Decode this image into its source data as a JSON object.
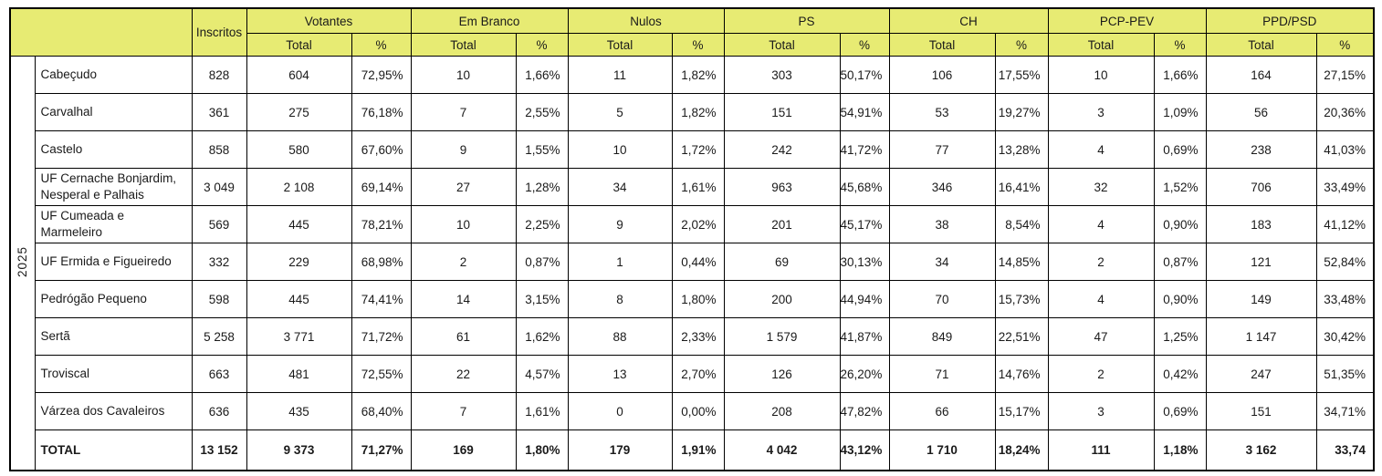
{
  "colors": {
    "header_bg": "#e7eb73",
    "border": "#000000",
    "text": "#1a1a1a"
  },
  "table": {
    "year_label": "2025",
    "corner_label": "",
    "inscritos_label": "Inscritos",
    "sub_total_label": "Total",
    "sub_pct_label": "%",
    "groups": [
      {
        "label": "Votantes"
      },
      {
        "label": "Em Branco"
      },
      {
        "label": "Nulos"
      },
      {
        "label": "PS"
      },
      {
        "label": "CH"
      },
      {
        "label": "PCP-PEV"
      },
      {
        "label": "PPD/PSD"
      }
    ],
    "rows": [
      {
        "name": "Cabeçudo",
        "values": [
          "828",
          "604",
          "72,95%",
          "10",
          "1,66%",
          "11",
          "1,82%",
          "303",
          "50,17%",
          "106",
          "17,55%",
          "10",
          "1,66%",
          "164",
          "27,15%"
        ]
      },
      {
        "name": "Carvalhal",
        "values": [
          "361",
          "275",
          "76,18%",
          "7",
          "2,55%",
          "5",
          "1,82%",
          "151",
          "54,91%",
          "53",
          "19,27%",
          "3",
          "1,09%",
          "56",
          "20,36%"
        ]
      },
      {
        "name": "Castelo",
        "values": [
          "858",
          "580",
          "67,60%",
          "9",
          "1,55%",
          "10",
          "1,72%",
          "242",
          "41,72%",
          "77",
          "13,28%",
          "4",
          "0,69%",
          "238",
          "41,03%"
        ]
      },
      {
        "name": "UF Cernache Bonjardim, Nesperal e Palhais",
        "values": [
          "3 049",
          "2 108",
          "69,14%",
          "27",
          "1,28%",
          "34",
          "1,61%",
          "963",
          "45,68%",
          "346",
          "16,41%",
          "32",
          "1,52%",
          "706",
          "33,49%"
        ]
      },
      {
        "name": "UF Cumeada e Marmeleiro",
        "values": [
          "569",
          "445",
          "78,21%",
          "10",
          "2,25%",
          "9",
          "2,02%",
          "201",
          "45,17%",
          "38",
          "8,54%",
          "4",
          "0,90%",
          "183",
          "41,12%"
        ]
      },
      {
        "name": "UF Ermida e Figueiredo",
        "values": [
          "332",
          "229",
          "68,98%",
          "2",
          "0,87%",
          "1",
          "0,44%",
          "69",
          "30,13%",
          "34",
          "14,85%",
          "2",
          "0,87%",
          "121",
          "52,84%"
        ]
      },
      {
        "name": "Pedrógão Pequeno",
        "values": [
          "598",
          "445",
          "74,41%",
          "14",
          "3,15%",
          "8",
          "1,80%",
          "200",
          "44,94%",
          "70",
          "15,73%",
          "4",
          "0,90%",
          "149",
          "33,48%"
        ]
      },
      {
        "name": "Sertã",
        "values": [
          "5 258",
          "3 771",
          "71,72%",
          "61",
          "1,62%",
          "88",
          "2,33%",
          "1 579",
          "41,87%",
          "849",
          "22,51%",
          "47",
          "1,25%",
          "1 147",
          "30,42%"
        ]
      },
      {
        "name": "Troviscal",
        "values": [
          "663",
          "481",
          "72,55%",
          "22",
          "4,57%",
          "13",
          "2,70%",
          "126",
          "26,20%",
          "71",
          "14,76%",
          "2",
          "0,42%",
          "247",
          "51,35%"
        ]
      },
      {
        "name": "Várzea dos Cavaleiros",
        "values": [
          "636",
          "435",
          "68,40%",
          "7",
          "1,61%",
          "0",
          "0,00%",
          "208",
          "47,82%",
          "66",
          "15,17%",
          "3",
          "0,69%",
          "151",
          "34,71%"
        ]
      }
    ],
    "total_row": {
      "name": "TOTAL",
      "values": [
        "13 152",
        "9 373",
        "71,27%",
        "169",
        "1,80%",
        "179",
        "1,91%",
        "4 042",
        "43,12%",
        "1 710",
        "18,24%",
        "111",
        "1,18%",
        "3 162",
        "33,74"
      ]
    }
  }
}
